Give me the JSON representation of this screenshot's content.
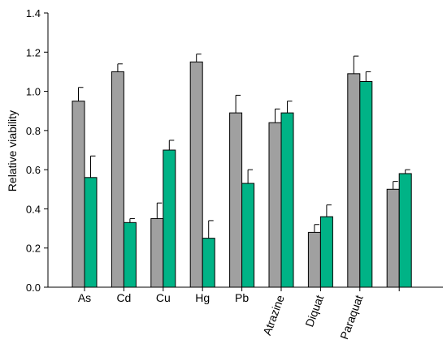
{
  "chart_data": {
    "type": "bar",
    "title": "",
    "xlabel": "",
    "ylabel": "Relative viability",
    "ylim": [
      0,
      1.4
    ],
    "yticks": [
      "0.0",
      "0.2",
      "0.4",
      "0.6",
      "0.8",
      "1.0",
      "1.2",
      "1.4"
    ],
    "yticks_values": [
      0,
      0.2,
      0.4,
      0.6,
      0.8,
      1.0,
      1.2,
      1.4
    ],
    "categories": [
      "As",
      "Cd",
      "Cu",
      "Hg",
      "Pb",
      "Atrazine",
      "Diquat",
      "Paraquat",
      ""
    ],
    "rotated_categories": [
      "Atrazine",
      "Diquat",
      "Paraquat"
    ],
    "grid": false,
    "legend": "none",
    "series": [
      {
        "color": "#a0a0a0",
        "values": [
          0.95,
          1.1,
          0.35,
          1.15,
          0.89,
          0.84,
          0.28,
          1.09,
          0.5
        ],
        "errors": [
          0.07,
          0.04,
          0.08,
          0.04,
          0.09,
          0.07,
          0.04,
          0.09,
          0.04
        ]
      },
      {
        "color": "#00b386",
        "values": [
          0.56,
          0.33,
          0.7,
          0.25,
          0.53,
          0.89,
          0.36,
          1.05,
          0.58
        ],
        "errors": [
          0.11,
          0.02,
          0.05,
          0.09,
          0.07,
          0.06,
          0.06,
          0.05,
          0.02
        ]
      }
    ]
  }
}
